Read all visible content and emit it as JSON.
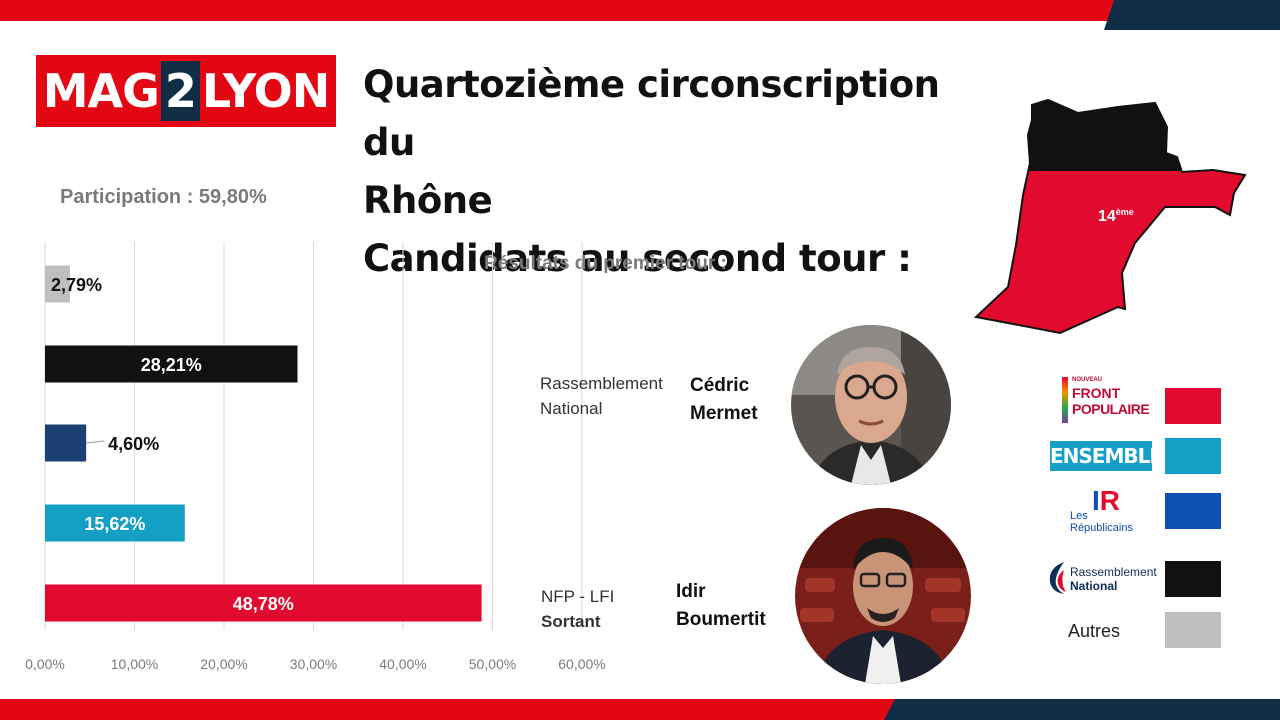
{
  "brand": {
    "logo_left": "MAG",
    "logo_mid": "2",
    "logo_right": "LYON"
  },
  "title": {
    "line1": "Quartozième circonscription du",
    "line2": "Rhône",
    "line3": "Candidats au second tour :"
  },
  "participation": "Participation : 59,80%",
  "results_label": "Résultats du premier tour :",
  "map": {
    "label": "14",
    "label_sup": "ème",
    "color_top": "#111111",
    "color_bottom": "#e30a2f"
  },
  "chart_data": {
    "type": "bar",
    "orientation": "horizontal",
    "categories": [
      "Autres",
      "Rassemblement National",
      "Les Républicains",
      "Ensemble",
      "Nouveau Front Populaire"
    ],
    "values": [
      2.79,
      28.21,
      4.6,
      15.62,
      48.78
    ],
    "value_labels": [
      "2,79%",
      "28,21%",
      "4,60%",
      "15,62%",
      "48,78%"
    ],
    "colors": [
      "#bfbfbf",
      "#111111",
      "#1d3f72",
      "#14a0c4",
      "#e30a2f"
    ],
    "xlim": [
      0,
      60
    ],
    "xticks": [
      "0,00%",
      "10,00%",
      "20,00%",
      "30,00%",
      "40,00%",
      "50,00%",
      "60,00%"
    ],
    "grid": true
  },
  "candidates": [
    {
      "party_line1": "Rassemblement",
      "party_line2": "National",
      "first_name": "Cédric",
      "last_name": "Mermet"
    },
    {
      "party_line1": "NFP - LFI",
      "party_line2": "Sortant",
      "first_name": "Idir",
      "last_name": "Boumertit"
    }
  ],
  "legend": [
    {
      "logo_l1": "NOUVEAU",
      "logo_l2": "FRONT",
      "logo_l3": "POPULAIRE",
      "color": "#e30a2f"
    },
    {
      "logo_l1": "ENSEMBLE",
      "color": "#14a0c4"
    },
    {
      "logo_l1": "Les",
      "logo_l2": "Républicains",
      "color": "#0d4fb3"
    },
    {
      "logo_l1": "Rassemblement",
      "logo_l2": "National",
      "color": "#111111"
    },
    {
      "logo_l1": "Autres",
      "color": "#bfbfbf"
    }
  ]
}
